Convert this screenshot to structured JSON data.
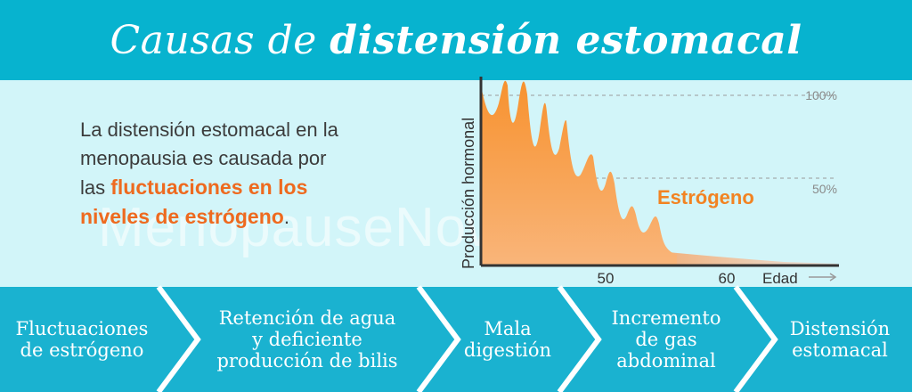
{
  "header": {
    "title_part1": "Causas de ",
    "title_part2": "distensión estomacal",
    "bg_color": "#07b3cf"
  },
  "description": {
    "line1": "La distensión estomacal en la",
    "line2": "menopausia es causada por",
    "line3_plain": "las ",
    "highlight1": "fluctuaciones en los",
    "highlight2": "niveles de estrógeno",
    "end": ".",
    "highlight_color": "#ee6a1f"
  },
  "watermark": "MenopauseNow.com",
  "chart_data": {
    "type": "area",
    "ylabel": "Producción hormonal",
    "xlabel": "Edad",
    "series_label": "Estrógeno",
    "reference_lines": [
      {
        "label": "100%",
        "value": 100
      },
      {
        "label": "50%",
        "value": 50
      }
    ],
    "x_ticks": [
      "50",
      "60"
    ],
    "series_color": "#f7922f"
  },
  "steps": [
    {
      "lines": [
        "Fluctuaciones",
        "de estrógeno"
      ]
    },
    {
      "lines": [
        "Retención de agua",
        "y deficiente",
        "producción de bilis"
      ]
    },
    {
      "lines": [
        "Mala",
        "digestión"
      ]
    },
    {
      "lines": [
        "Incremento",
        "de gas",
        "abdominal"
      ]
    },
    {
      "lines": [
        "Distensión",
        "estomacal"
      ]
    }
  ]
}
